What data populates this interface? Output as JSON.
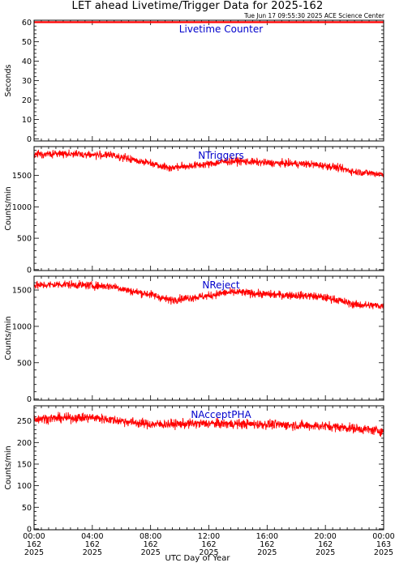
{
  "header": {
    "title": "LET ahead Livetime/Trigger Data for 2025-162",
    "timestamp": "Tue Jun 17 09:55:30 2025 ACE Science Center"
  },
  "colors": {
    "data": "#ff0000",
    "panel_title": "#0000cc",
    "axis": "#000000"
  },
  "chart_data": {
    "type": "line",
    "xlabel": "UTC Day of Year",
    "x_range_hours": [
      0,
      24
    ],
    "x_ticks": [
      {
        "time": "00:00",
        "doy": "162",
        "year": "2025"
      },
      {
        "time": "04:00",
        "doy": "162",
        "year": "2025"
      },
      {
        "time": "08:00",
        "doy": "162",
        "year": "2025"
      },
      {
        "time": "12:00",
        "doy": "162",
        "year": "2025"
      },
      {
        "time": "16:00",
        "doy": "162",
        "year": "2025"
      },
      {
        "time": "20:00",
        "doy": "162",
        "year": "2025"
      },
      {
        "time": "00:00",
        "doy": "163",
        "year": "2025"
      }
    ],
    "panels": [
      {
        "title": "Livetime Counter",
        "ylabel": "Seconds",
        "ylim": [
          -1,
          61
        ],
        "yticks": [
          0,
          10,
          20,
          30,
          40,
          50,
          60
        ],
        "profile_hours": [
          0,
          24
        ],
        "profile_values": [
          60,
          60
        ],
        "noise": 0
      },
      {
        "title": "NTriggers",
        "ylabel": "Counts/min",
        "ylim": [
          -15,
          1960
        ],
        "yticks": [
          0,
          500,
          1000,
          1500
        ],
        "profile_hours": [
          0,
          2,
          4,
          5.5,
          6.5,
          8,
          9.3,
          10.5,
          12,
          13,
          14,
          16,
          19,
          20.5,
          22,
          24
        ],
        "profile_values": [
          1830,
          1850,
          1830,
          1820,
          1760,
          1700,
          1620,
          1650,
          1680,
          1720,
          1730,
          1700,
          1680,
          1640,
          1560,
          1520
        ],
        "noise": 65
      },
      {
        "title": "NReject",
        "ylabel": "Counts/min",
        "ylim": [
          -15,
          1690
        ],
        "yticks": [
          0,
          500,
          1000,
          1500
        ],
        "profile_hours": [
          0,
          2,
          4,
          5.5,
          6.5,
          8,
          9.3,
          10.5,
          12,
          13,
          14,
          16,
          19,
          20.5,
          22,
          24
        ],
        "profile_values": [
          1560,
          1580,
          1560,
          1550,
          1490,
          1440,
          1360,
          1390,
          1420,
          1460,
          1470,
          1440,
          1420,
          1380,
          1300,
          1280
        ],
        "noise": 60
      },
      {
        "title": "NAcceptPHA",
        "ylabel": "Counts/min",
        "ylim": [
          -2,
          285
        ],
        "yticks": [
          0,
          50,
          100,
          150,
          200,
          250
        ],
        "profile_hours": [
          0,
          4,
          6,
          8,
          12,
          16,
          20,
          22,
          24
        ],
        "profile_values": [
          255,
          258,
          250,
          242,
          244,
          242,
          238,
          233,
          226
        ],
        "noise": 12
      }
    ]
  }
}
